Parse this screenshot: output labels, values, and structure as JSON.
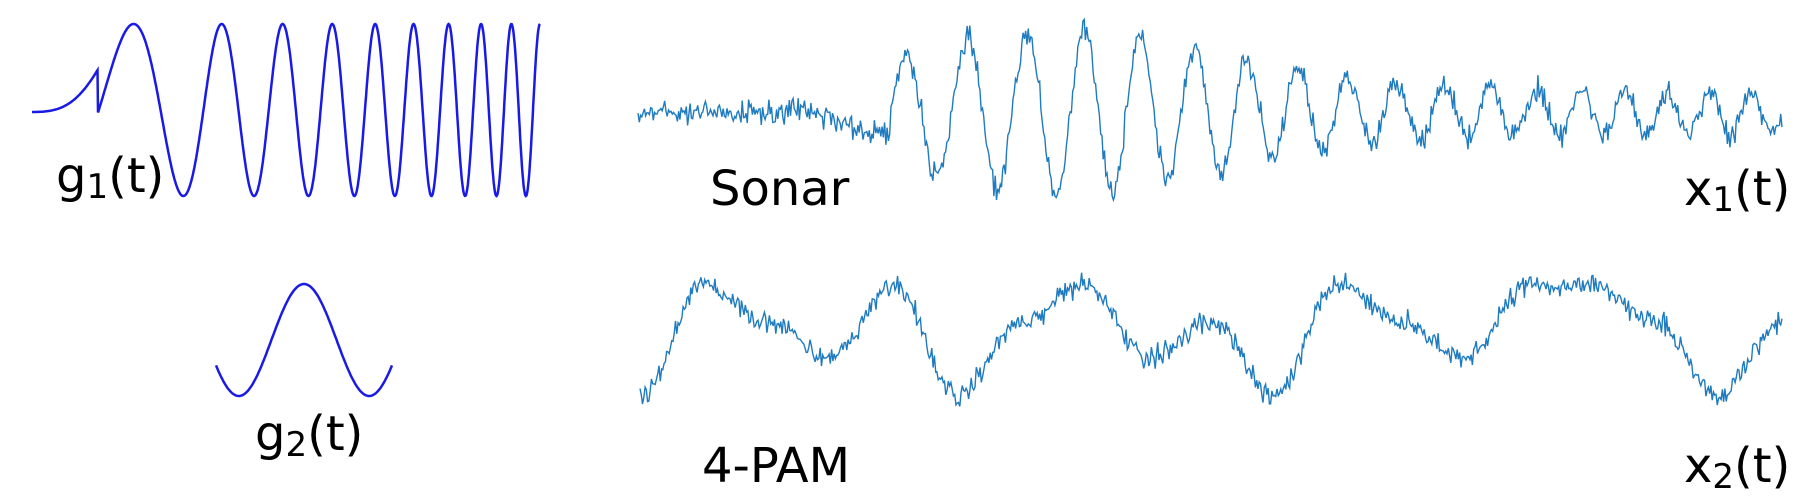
{
  "colors": {
    "pulse": "#1a1ae6",
    "signal": "#1f7bbf"
  },
  "labels": {
    "g1": {
      "base": "g",
      "sub": "1",
      "tail": "(t)"
    },
    "g2": {
      "base": "g",
      "sub": "2",
      "tail": "(t)"
    },
    "x1": {
      "base": "x",
      "sub": "1",
      "tail": "(t)"
    },
    "x2": {
      "base": "x",
      "sub": "2",
      "tail": "(t)"
    },
    "sonar": "Sonar",
    "pam": "4-PAM"
  }
}
